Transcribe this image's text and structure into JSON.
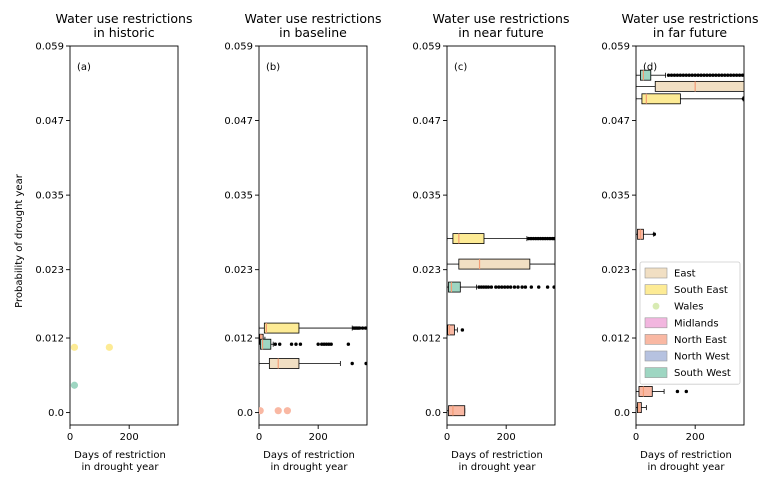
{
  "colors": {
    "East": "#f1dfc3",
    "South East": "#fdeb95",
    "Wales": "#d8ebb3",
    "Midlands": "#f2b6df",
    "North East": "#f9b8a3",
    "North West": "#b6c2e0",
    "South West": "#9ed6c2",
    "median": "#f39c74",
    "flier": "#000000"
  },
  "legend": [
    "East",
    "South East",
    "Wales",
    "Midlands",
    "North East",
    "North West",
    "South West"
  ],
  "legend_placement": "lower-right of panel (d)",
  "ylabel": "Probability of drought year",
  "chart_data": [
    {
      "type": "box",
      "orientation": "horizontal",
      "panel_label": "(a)",
      "title_lines": [
        "Water use restrictions",
        "in historic"
      ],
      "xlabel_lines": [
        "Days of restriction",
        "in drought year"
      ],
      "xlim": [
        0,
        365
      ],
      "xticks": [
        0,
        200
      ],
      "ylim": [
        -0.002,
        0.059
      ],
      "yticks": [
        0.0,
        0.012,
        0.023,
        0.035,
        0.047,
        0.059
      ],
      "ytick_labels": [
        "0.0",
        "0.012",
        "0.023",
        "0.035",
        "0.047",
        "0.059"
      ],
      "boxes": [],
      "points": [
        {
          "region": "South East",
          "x": 15,
          "y": 0.0105
        },
        {
          "region": "South East",
          "x": 133,
          "y": 0.0105
        },
        {
          "region": "South West",
          "x": 15,
          "y": 0.0044
        }
      ]
    },
    {
      "type": "box",
      "orientation": "horizontal",
      "panel_label": "(b)",
      "title_lines": [
        "Water use restrictions",
        "in baseline"
      ],
      "xlabel_lines": [
        "Days of restriction",
        "in drought year"
      ],
      "xlim": [
        0,
        365
      ],
      "xticks": [
        0,
        200
      ],
      "ylim": [
        -0.002,
        0.059
      ],
      "yticks": [
        0.0,
        0.012,
        0.023,
        0.035,
        0.047,
        0.059
      ],
      "ytick_labels": [
        "0.0",
        "0.012",
        "0.023",
        "0.035",
        "0.047",
        "0.059"
      ],
      "boxes": [
        {
          "region": "South East",
          "y": 0.0136,
          "q1": 18,
          "median": 25,
          "q3": 135,
          "whislo": 0,
          "whishi": 315,
          "fliers": [
            320,
            325,
            330,
            335,
            340,
            350,
            360
          ]
        },
        {
          "region": "North East",
          "y": 0.0118,
          "q1": 2,
          "median": 6,
          "q3": 14,
          "whislo": 0,
          "whishi": 20,
          "fliers": []
        },
        {
          "region": "South West",
          "y": 0.011,
          "q1": 5,
          "median": 12,
          "q3": 40,
          "whislo": 0,
          "whishi": 48,
          "fliers": [
            55,
            70,
            110,
            125,
            140,
            200,
            212,
            220,
            228,
            236,
            244,
            302
          ]
        },
        {
          "region": "East",
          "y": 0.0079,
          "q1": 35,
          "median": 65,
          "q3": 135,
          "whislo": 0,
          "whishi": 275,
          "fliers": [
            315,
            362
          ]
        }
      ],
      "points": [
        {
          "region": "North East",
          "x": 4,
          "y": 0.0003
        },
        {
          "region": "North East",
          "x": 65,
          "y": 0.0003
        },
        {
          "region": "North East",
          "x": 96,
          "y": 0.0003
        }
      ]
    },
    {
      "type": "box",
      "orientation": "horizontal",
      "panel_label": "(c)",
      "title_lines": [
        "Water use restrictions",
        "in near future"
      ],
      "xlabel_lines": [
        "Days of restriction",
        "in drought year"
      ],
      "xlim": [
        0,
        365
      ],
      "xticks": [
        0,
        200
      ],
      "ylim": [
        -0.002,
        0.059
      ],
      "yticks": [
        0.0,
        0.012,
        0.023,
        0.035,
        0.047,
        0.059
      ],
      "ytick_labels": [
        "0.0",
        "0.012",
        "0.023",
        "0.035",
        "0.047",
        "0.059"
      ],
      "boxes": [
        {
          "region": "South East",
          "y": 0.028,
          "q1": 20,
          "median": 40,
          "q3": 125,
          "whislo": 0,
          "whishi": 270,
          "fliers": [
            276,
            284,
            292,
            300,
            308,
            316,
            324,
            332,
            340,
            348,
            356,
            362
          ]
        },
        {
          "region": "East",
          "y": 0.0239,
          "q1": 40,
          "median": 110,
          "q3": 280,
          "whislo": 0,
          "whishi": 365,
          "fliers": []
        },
        {
          "region": "South West",
          "y": 0.0202,
          "q1": 5,
          "median": 15,
          "q3": 45,
          "whislo": 0,
          "whishi": 100,
          "fliers": [
            108,
            116,
            124,
            132,
            140,
            150,
            165,
            175,
            185,
            195,
            205,
            215,
            228,
            240,
            254,
            265,
            285,
            310,
            340,
            362
          ]
        },
        {
          "region": "North East",
          "y": 0.0133,
          "q1": 2,
          "median": 8,
          "q3": 25,
          "whislo": 0,
          "whishi": 35,
          "fliers": [
            52
          ]
        },
        {
          "region": "North East",
          "y": 0.0003,
          "q1": 5,
          "median": 20,
          "q3": 60,
          "whislo": 0,
          "whishi": 60,
          "fliers": []
        }
      ],
      "points": []
    },
    {
      "type": "box",
      "orientation": "horizontal",
      "panel_label": "(d)",
      "title_lines": [
        "Water use restrictions",
        "in far future"
      ],
      "xlabel_lines": [
        "Days of restriction",
        "in drought year"
      ],
      "xlim": [
        0,
        365
      ],
      "xticks": [
        0,
        200
      ],
      "ylim": [
        -0.002,
        0.059
      ],
      "yticks": [
        0.0,
        0.012,
        0.023,
        0.035,
        0.047,
        0.059
      ],
      "ytick_labels": [
        "0.0",
        "0.012",
        "0.023",
        "0.035",
        "0.047",
        "0.059"
      ],
      "boxes": [
        {
          "region": "South West",
          "y": 0.0543,
          "q1": 15,
          "median": 25,
          "q3": 50,
          "whislo": 0,
          "whishi": 100,
          "fliers": [
            110,
            120,
            130,
            140,
            150,
            160,
            170,
            180,
            190,
            200,
            210,
            220,
            230,
            240,
            250,
            260,
            270,
            280,
            290,
            300,
            310,
            320,
            330,
            340,
            350,
            360
          ]
        },
        {
          "region": "East",
          "y": 0.0525,
          "q1": 65,
          "median": 200,
          "q3": 365,
          "whislo": 0,
          "whishi": 365,
          "fliers": []
        },
        {
          "region": "South East",
          "y": 0.0505,
          "q1": 20,
          "median": 35,
          "q3": 150,
          "whislo": 0,
          "whishi": 362,
          "fliers": [
            363
          ]
        },
        {
          "region": "North East",
          "y": 0.0287,
          "q1": 5,
          "median": 15,
          "q3": 25,
          "whislo": 0,
          "whishi": 60,
          "fliers": [
            62
          ]
        },
        {
          "region": "North East",
          "y": 0.0034,
          "q1": 10,
          "median": 25,
          "q3": 55,
          "whislo": 0,
          "whishi": 95,
          "fliers": [
            140,
            170
          ]
        },
        {
          "region": "North East",
          "y": 0.0008,
          "q1": 5,
          "median": 10,
          "q3": 18,
          "whislo": 0,
          "whishi": 35,
          "fliers": []
        }
      ],
      "points": []
    }
  ]
}
